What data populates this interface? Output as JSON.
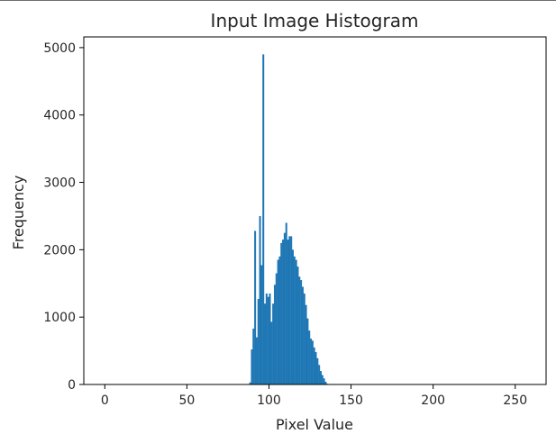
{
  "chart_data": {
    "type": "bar",
    "title": "Input Image Histogram",
    "xlabel": "Pixel Value",
    "ylabel": "Frequency",
    "xlim": [
      -12.8,
      268.8
    ],
    "ylim": [
      0,
      5159
    ],
    "xticks": [
      0,
      50,
      100,
      150,
      200,
      250
    ],
    "yticks": [
      0,
      1000,
      2000,
      3000,
      4000,
      5000
    ],
    "grid": false,
    "bar_color": "#1f77b4",
    "series": [
      {
        "x": [
          88,
          89,
          90,
          91,
          92,
          93,
          94,
          95,
          96,
          97,
          98,
          99,
          100,
          101,
          102,
          103,
          104,
          105,
          106,
          107,
          108,
          109,
          110,
          111,
          112,
          113,
          114,
          115,
          116,
          117,
          118,
          119,
          120,
          121,
          122,
          123,
          124,
          125,
          126,
          127,
          128,
          129,
          130,
          131,
          132,
          133,
          134,
          135
        ],
        "values": [
          30,
          520,
          830,
          2280,
          700,
          1270,
          2500,
          1770,
          4900,
          1200,
          1350,
          1300,
          1350,
          930,
          1200,
          1480,
          1650,
          1850,
          1900,
          2100,
          2150,
          2250,
          2400,
          2150,
          2200,
          2200,
          2000,
          1900,
          1850,
          1750,
          1600,
          1550,
          1450,
          1350,
          1180,
          980,
          800,
          680,
          650,
          550,
          480,
          390,
          290,
          200,
          140,
          90,
          40,
          10
        ]
      }
    ]
  }
}
